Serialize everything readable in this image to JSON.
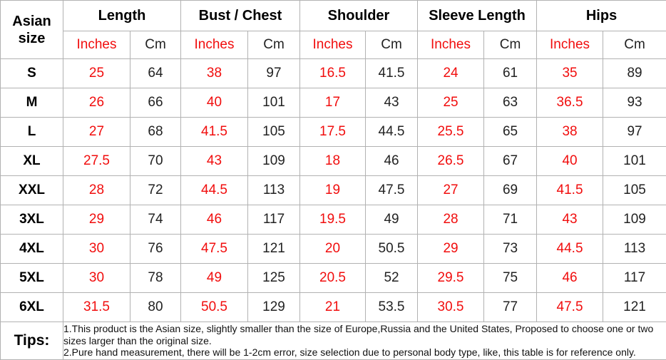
{
  "chart_data": {
    "type": "table",
    "corner_header": "Asian size",
    "column_groups": [
      "Length",
      "Bust / Chest",
      "Shoulder",
      "Sleeve Length",
      "Hips"
    ],
    "unit_headers": [
      "Inches",
      "Cm"
    ],
    "rows": [
      {
        "size": "S",
        "values": [
          "25",
          "64",
          "38",
          "97",
          "16.5",
          "41.5",
          "24",
          "61",
          "35",
          "89"
        ]
      },
      {
        "size": "M",
        "values": [
          "26",
          "66",
          "40",
          "101",
          "17",
          "43",
          "25",
          "63",
          "36.5",
          "93"
        ]
      },
      {
        "size": "L",
        "values": [
          "27",
          "68",
          "41.5",
          "105",
          "17.5",
          "44.5",
          "25.5",
          "65",
          "38",
          "97"
        ]
      },
      {
        "size": "XL",
        "values": [
          "27.5",
          "70",
          "43",
          "109",
          "18",
          "46",
          "26.5",
          "67",
          "40",
          "101"
        ]
      },
      {
        "size": "XXL",
        "values": [
          "28",
          "72",
          "44.5",
          "113",
          "19",
          "47.5",
          "27",
          "69",
          "41.5",
          "105"
        ]
      },
      {
        "size": "3XL",
        "values": [
          "29",
          "74",
          "46",
          "117",
          "19.5",
          "49",
          "28",
          "71",
          "43",
          "109"
        ]
      },
      {
        "size": "4XL",
        "values": [
          "30",
          "76",
          "47.5",
          "121",
          "20",
          "50.5",
          "29",
          "73",
          "44.5",
          "113"
        ]
      },
      {
        "size": "5XL",
        "values": [
          "30",
          "78",
          "49",
          "125",
          "20.5",
          "52",
          "29.5",
          "75",
          "46",
          "117"
        ]
      },
      {
        "size": "6XL",
        "values": [
          "31.5",
          "80",
          "50.5",
          "129",
          "21",
          "53.5",
          "30.5",
          "77",
          "47.5",
          "121"
        ]
      }
    ],
    "tips": {
      "label": "Tips:",
      "lines": [
        "1.This product is the Asian size, slightly smaller than the size of Europe,Russia and the United States, Proposed to choose one or two sizes larger than the original size.",
        "2.Pure hand measurement, there will be 1-2cm error, size selection due to personal body type, like, this table is for reference only."
      ]
    },
    "colors": {
      "accent_red": "#f10d0d",
      "unit_row_bg": "#f0f0f0",
      "border": "#b2b2b2",
      "text": "#222222"
    }
  }
}
